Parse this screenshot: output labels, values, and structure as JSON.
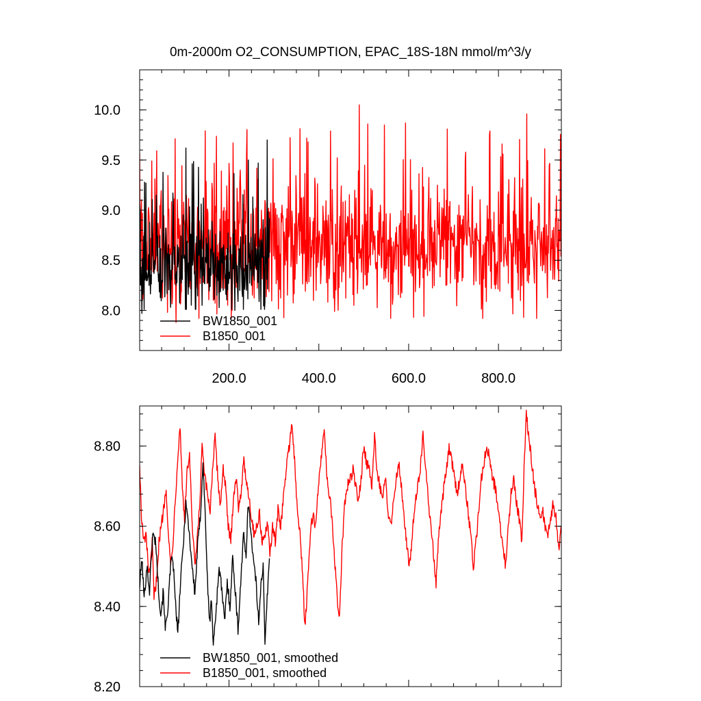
{
  "chart_data": [
    {
      "type": "line",
      "title": "0m-2000m O2_CONSUMPTION, EPAC_18S-18N  mmol/m^3/y",
      "xlabel": "",
      "ylabel": "",
      "xlim": [
        1,
        940
      ],
      "ylim": [
        7.6,
        10.4
      ],
      "xticks": [
        200,
        400,
        600,
        800
      ],
      "xtick_labels": [
        "200.0",
        "400.0",
        "600.0",
        "800.0"
      ],
      "yticks": [
        8.0,
        8.5,
        9.0,
        9.5,
        10.0
      ],
      "ytick_labels": [
        "8.0",
        "8.5",
        "9.0",
        "9.5",
        "10.0"
      ],
      "grid": false,
      "legend": "bottom-left",
      "series": [
        {
          "name": "BW1850_001",
          "color": "#000000",
          "x_start": 1,
          "x_end": 290,
          "n": 290,
          "mean": 8.45,
          "std": 0.22,
          "min": 7.97,
          "max": 9.7,
          "peaks": [
            [
              104,
              9.62
            ],
            [
              285,
              9.7
            ],
            [
              243,
              9.5
            ],
            [
              265,
              9.47
            ],
            [
              15,
              9.27
            ]
          ],
          "troughs": [
            [
              6,
              7.97
            ],
            [
              213,
              8.0
            ],
            [
              140,
              8.05
            ],
            [
              280,
              8.08
            ]
          ]
        },
        {
          "name": "B1850_001",
          "color": "#ff0000",
          "x_start": 1,
          "x_end": 940,
          "n": 940,
          "mean": 8.62,
          "std": 0.28,
          "min": 7.88,
          "max": 10.05,
          "peaks": [
            [
              490,
              10.05
            ],
            [
              863,
              9.96
            ],
            [
              509,
              9.86
            ],
            [
              546,
              9.85
            ],
            [
              593,
              9.87
            ],
            [
              808,
              9.66
            ],
            [
              1,
              9.57
            ],
            [
              225,
              9.4
            ]
          ],
          "troughs": [
            [
              82,
              7.88
            ],
            [
              205,
              7.92
            ],
            [
              611,
              7.93
            ],
            [
              856,
              7.93
            ],
            [
              435,
              7.99
            ],
            [
              478,
              8.05
            ]
          ]
        }
      ]
    },
    {
      "type": "line",
      "title": "",
      "xlabel": "",
      "ylabel": "",
      "xlim": [
        1,
        940
      ],
      "ylim": [
        8.2,
        8.9
      ],
      "yticks": [
        8.2,
        8.4,
        8.6,
        8.8
      ],
      "ytick_labels": [
        "8.20",
        "8.40",
        "8.60",
        "8.80"
      ],
      "grid": false,
      "legend": "bottom-left",
      "series": [
        {
          "name": "BW1850_001, smoothed",
          "color": "#000000",
          "points": [
            [
              1,
              8.45
            ],
            [
              6,
              8.52
            ],
            [
              11,
              8.42
            ],
            [
              17,
              8.5
            ],
            [
              23,
              8.44
            ],
            [
              30,
              8.58
            ],
            [
              37,
              8.56
            ],
            [
              42,
              8.46
            ],
            [
              48,
              8.38
            ],
            [
              54,
              8.44
            ],
            [
              58,
              8.34
            ],
            [
              64,
              8.4
            ],
            [
              70,
              8.5
            ],
            [
              75,
              8.52
            ],
            [
              80,
              8.42
            ],
            [
              86,
              8.33
            ],
            [
              92,
              8.46
            ],
            [
              98,
              8.55
            ],
            [
              104,
              8.66
            ],
            [
              110,
              8.6
            ],
            [
              118,
              8.5
            ],
            [
              124,
              8.43
            ],
            [
              130,
              8.55
            ],
            [
              136,
              8.62
            ],
            [
              142,
              8.76
            ],
            [
              148,
              8.6
            ],
            [
              153,
              8.43
            ],
            [
              157,
              8.36
            ],
            [
              161,
              8.42
            ],
            [
              165,
              8.3
            ],
            [
              169,
              8.36
            ],
            [
              173,
              8.42
            ],
            [
              178,
              8.5
            ],
            [
              184,
              8.44
            ],
            [
              190,
              8.36
            ],
            [
              196,
              8.46
            ],
            [
              202,
              8.4
            ],
            [
              208,
              8.52
            ],
            [
              214,
              8.44
            ],
            [
              220,
              8.34
            ],
            [
              226,
              8.46
            ],
            [
              232,
              8.58
            ],
            [
              238,
              8.52
            ],
            [
              242,
              8.66
            ],
            [
              248,
              8.6
            ],
            [
              254,
              8.52
            ],
            [
              260,
              8.46
            ],
            [
              266,
              8.36
            ],
            [
              271,
              8.46
            ],
            [
              276,
              8.5
            ],
            [
              280,
              8.3
            ],
            [
              284,
              8.4
            ],
            [
              290,
              8.52
            ]
          ]
        },
        {
          "name": "B1850_001, smoothed",
          "color": "#ff0000",
          "points": [
            [
              1,
              8.76
            ],
            [
              5,
              8.62
            ],
            [
              10,
              8.56
            ],
            [
              15,
              8.58
            ],
            [
              20,
              8.5
            ],
            [
              24,
              8.48
            ],
            [
              29,
              8.56
            ],
            [
              33,
              8.42
            ],
            [
              38,
              8.46
            ],
            [
              44,
              8.56
            ],
            [
              49,
              8.6
            ],
            [
              54,
              8.64
            ],
            [
              60,
              8.7
            ],
            [
              65,
              8.58
            ],
            [
              70,
              8.5
            ],
            [
              75,
              8.56
            ],
            [
              80,
              8.66
            ],
            [
              85,
              8.76
            ],
            [
              91,
              8.85
            ],
            [
              96,
              8.7
            ],
            [
              101,
              8.62
            ],
            [
              107,
              8.74
            ],
            [
              112,
              8.78
            ],
            [
              118,
              8.6
            ],
            [
              124,
              8.5
            ],
            [
              129,
              8.56
            ],
            [
              135,
              8.66
            ],
            [
              140,
              8.8
            ],
            [
              146,
              8.72
            ],
            [
              152,
              8.68
            ],
            [
              158,
              8.64
            ],
            [
              163,
              8.74
            ],
            [
              169,
              8.82
            ],
            [
              175,
              8.72
            ],
            [
              181,
              8.65
            ],
            [
              187,
              8.75
            ],
            [
              192,
              8.7
            ],
            [
              198,
              8.6
            ],
            [
              204,
              8.56
            ],
            [
              210,
              8.68
            ],
            [
              216,
              8.72
            ],
            [
              221,
              8.65
            ],
            [
              226,
              8.68
            ],
            [
              233,
              8.76
            ],
            [
              238,
              8.72
            ],
            [
              244,
              8.68
            ],
            [
              250,
              8.62
            ],
            [
              256,
              8.58
            ],
            [
              262,
              8.6
            ],
            [
              268,
              8.63
            ],
            [
              274,
              8.56
            ],
            [
              280,
              8.58
            ],
            [
              286,
              8.6
            ],
            [
              291,
              8.53
            ],
            [
              297,
              8.6
            ],
            [
              303,
              8.56
            ],
            [
              309,
              8.64
            ],
            [
              315,
              8.6
            ],
            [
              322,
              8.68
            ],
            [
              328,
              8.75
            ],
            [
              334,
              8.8
            ],
            [
              340,
              8.86
            ],
            [
              346,
              8.76
            ],
            [
              352,
              8.64
            ],
            [
              358,
              8.58
            ],
            [
              364,
              8.48
            ],
            [
              369,
              8.35
            ],
            [
              375,
              8.45
            ],
            [
              381,
              8.58
            ],
            [
              387,
              8.63
            ],
            [
              393,
              8.6
            ],
            [
              399,
              8.7
            ],
            [
              406,
              8.78
            ],
            [
              412,
              8.85
            ],
            [
              418,
              8.72
            ],
            [
              424,
              8.68
            ],
            [
              430,
              8.6
            ],
            [
              436,
              8.5
            ],
            [
              441,
              8.42
            ],
            [
              446,
              8.37
            ],
            [
              452,
              8.55
            ],
            [
              458,
              8.66
            ],
            [
              464,
              8.7
            ],
            [
              470,
              8.72
            ],
            [
              476,
              8.74
            ],
            [
              482,
              8.7
            ],
            [
              488,
              8.66
            ],
            [
              494,
              8.72
            ],
            [
              500,
              8.8
            ],
            [
              506,
              8.76
            ],
            [
              512,
              8.74
            ],
            [
              518,
              8.7
            ],
            [
              524,
              8.82
            ],
            [
              530,
              8.74
            ],
            [
              536,
              8.7
            ],
            [
              542,
              8.66
            ],
            [
              548,
              8.72
            ],
            [
              554,
              8.64
            ],
            [
              560,
              8.6
            ],
            [
              566,
              8.66
            ],
            [
              572,
              8.72
            ],
            [
              578,
              8.76
            ],
            [
              584,
              8.7
            ],
            [
              590,
              8.62
            ],
            [
              596,
              8.55
            ],
            [
              602,
              8.5
            ],
            [
              608,
              8.58
            ],
            [
              614,
              8.66
            ],
            [
              620,
              8.7
            ],
            [
              626,
              8.74
            ],
            [
              632,
              8.84
            ],
            [
              638,
              8.74
            ],
            [
              644,
              8.66
            ],
            [
              650,
              8.6
            ],
            [
              656,
              8.52
            ],
            [
              661,
              8.46
            ],
            [
              667,
              8.58
            ],
            [
              673,
              8.64
            ],
            [
              679,
              8.7
            ],
            [
              684,
              8.74
            ],
            [
              690,
              8.8
            ],
            [
              696,
              8.76
            ],
            [
              702,
              8.72
            ],
            [
              708,
              8.68
            ],
            [
              714,
              8.72
            ],
            [
              720,
              8.76
            ],
            [
              726,
              8.7
            ],
            [
              732,
              8.64
            ],
            [
              738,
              8.58
            ],
            [
              744,
              8.5
            ],
            [
              750,
              8.56
            ],
            [
              756,
              8.64
            ],
            [
              762,
              8.72
            ],
            [
              768,
              8.76
            ],
            [
              774,
              8.8
            ],
            [
              780,
              8.78
            ],
            [
              786,
              8.72
            ],
            [
              792,
              8.7
            ],
            [
              798,
              8.66
            ],
            [
              804,
              8.6
            ],
            [
              810,
              8.55
            ],
            [
              816,
              8.5
            ],
            [
              822,
              8.6
            ],
            [
              828,
              8.68
            ],
            [
              834,
              8.72
            ],
            [
              840,
              8.66
            ],
            [
              846,
              8.62
            ],
            [
              852,
              8.56
            ],
            [
              858,
              8.78
            ],
            [
              862,
              8.88
            ],
            [
              868,
              8.82
            ],
            [
              874,
              8.76
            ],
            [
              880,
              8.7
            ],
            [
              886,
              8.66
            ],
            [
              892,
              8.62
            ],
            [
              898,
              8.64
            ],
            [
              904,
              8.6
            ],
            [
              910,
              8.58
            ],
            [
              916,
              8.62
            ],
            [
              922,
              8.66
            ],
            [
              928,
              8.62
            ],
            [
              934,
              8.54
            ],
            [
              940,
              8.6
            ]
          ]
        }
      ]
    }
  ]
}
